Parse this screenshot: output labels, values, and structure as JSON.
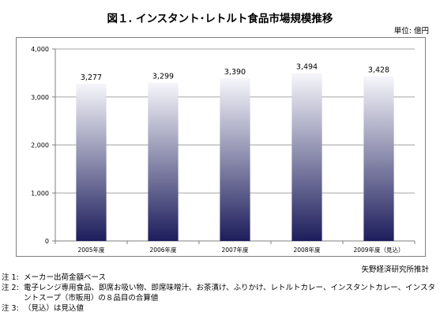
{
  "title": "図１. インスタント･レトルト食品市場規模推移",
  "unit_label": "単位: 億円",
  "source": "矢野経済研究所推計",
  "notes": [
    {
      "label": "注 1:",
      "lines": [
        "メーカー出荷金額ベース"
      ]
    },
    {
      "label": "注 2:",
      "lines": [
        "電子レンジ専用食品、即席お吸い物、即席味噌汁、お茶漬け、ふりかけ、レトルトカレー、インスタントカレー、インスタ",
        "ントスープ（市販用）の８品目の合算値"
      ]
    },
    {
      "label": "注 3:",
      "lines": [
        "（見込）は見込値"
      ]
    }
  ],
  "chart_data": {
    "type": "bar",
    "categories": [
      "2005年度",
      "2006年度",
      "2007年度",
      "2008年度",
      "2009年度（見込）"
    ],
    "values": [
      3277,
      3299,
      3390,
      3494,
      3428
    ],
    "value_labels": [
      "3,277",
      "3,299",
      "3,390",
      "3,494",
      "3,428"
    ],
    "y_ticks": [
      "0",
      "1,000",
      "2,000",
      "3,000",
      "4,000"
    ],
    "y_tick_values": [
      0,
      1000,
      2000,
      3000,
      4000
    ],
    "ylim": [
      0,
      4000
    ],
    "grid": true,
    "bar_gradient": {
      "top": "#f6f6fb",
      "bottom": "#1d1d5c"
    }
  }
}
